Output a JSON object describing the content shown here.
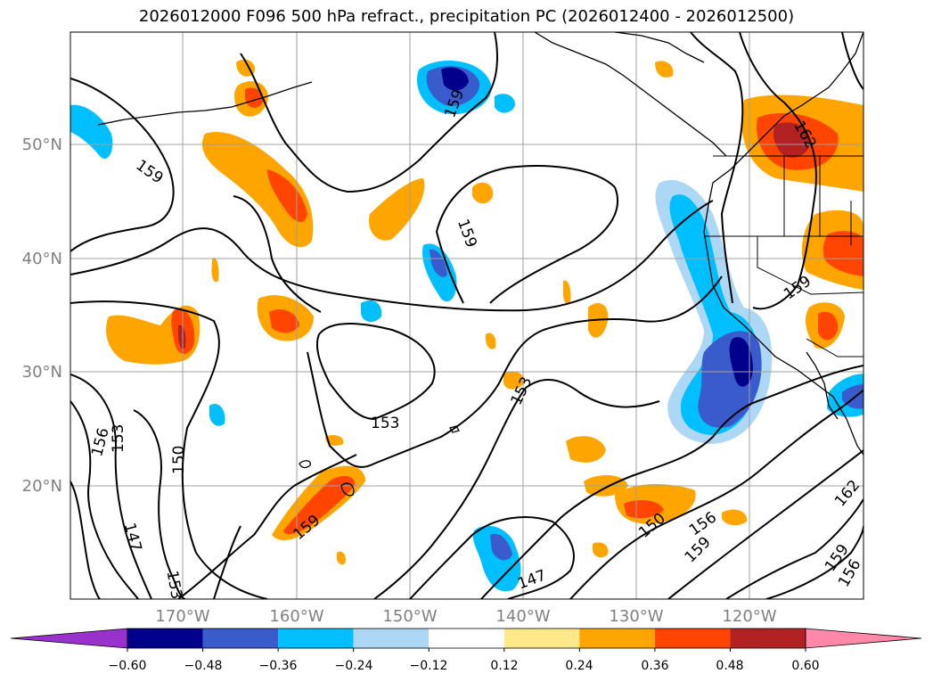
{
  "title": "2026012000 F096 500 hPa refract., precipitation PC (2026012400 - 2026012500)",
  "lon_labels": [
    "170°W",
    "160°W",
    "150°W",
    "140°W",
    "130°W",
    "120°W"
  ],
  "lat_labels": [
    "50°N",
    "40°N",
    "30°N",
    "20°N"
  ],
  "contour_labels": [
    "159",
    "159",
    "159",
    "159",
    "162",
    "153",
    "153",
    "156",
    "153",
    "150",
    "147",
    "153",
    "159",
    "150",
    "156",
    "159",
    "147",
    "162",
    "159",
    "156"
  ],
  "colorbar": {
    "ticks": [
      "−0.60",
      "−0.48",
      "−0.36",
      "−0.24",
      "−0.12",
      "0.12",
      "0.24",
      "0.36",
      "0.48",
      "0.60"
    ],
    "colors": [
      "#9932cc",
      "#00008b",
      "#3a5bcc",
      "#00bfff",
      "#add8f5",
      "#ffffff",
      "#ffe88a",
      "#ffa500",
      "#ff4500",
      "#b22222",
      "#ff88aa"
    ]
  },
  "legend_colors": {
    "strong_negative": "#3a5bcc",
    "negative": "#00bfff",
    "weak_negative": "#add8f5",
    "weak_positive": "#ffe88a",
    "positive": "#ffa500",
    "strong_positive": "#ff4500",
    "very_strong_positive": "#b22222"
  }
}
